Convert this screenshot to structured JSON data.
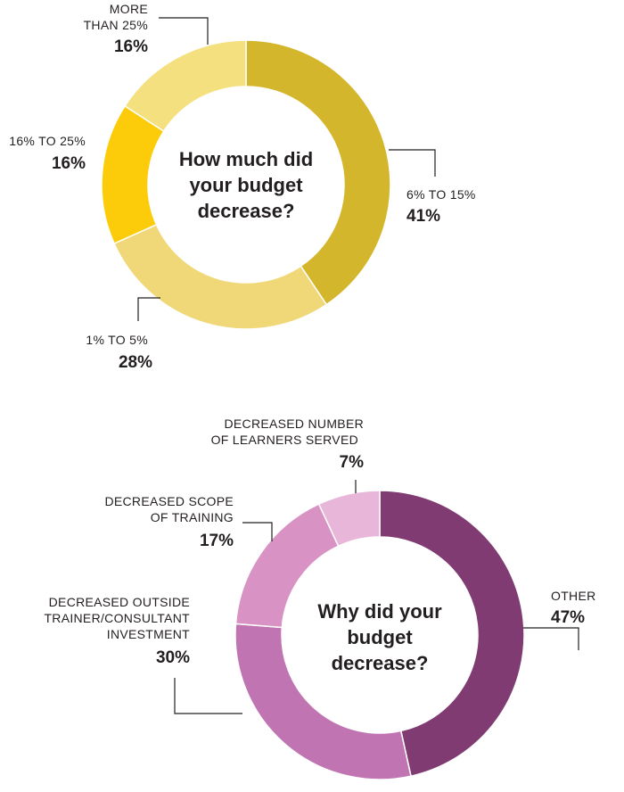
{
  "chart_data": [
    {
      "type": "pie",
      "donut": true,
      "title_lines": [
        "How much did",
        "your budget",
        "decrease?"
      ],
      "slices": [
        {
          "label_lines": [
            "6% TO 15%"
          ],
          "pct_label": "41%",
          "value": 41,
          "color": "#d4b62c"
        },
        {
          "label_lines": [
            "1% TO 5%"
          ],
          "pct_label": "28%",
          "value": 28,
          "color": "#f0d878"
        },
        {
          "label_lines": [
            "16% TO 25%"
          ],
          "pct_label": "16%",
          "value": 16,
          "color": "#fccc0a"
        },
        {
          "label_lines": [
            "MORE",
            "THAN 25%"
          ],
          "pct_label": "16%",
          "value": 16,
          "color": "#f4e07e"
        }
      ]
    },
    {
      "type": "pie",
      "donut": true,
      "title_lines": [
        "Why did your",
        "budget",
        "decrease?"
      ],
      "slices": [
        {
          "label_lines": [
            "OTHER"
          ],
          "pct_label": "47%",
          "value": 47,
          "color": "#7f3b72"
        },
        {
          "label_lines": [
            "DECREASED OUTSIDE",
            "TRAINER/CONSULTANT",
            "INVESTMENT"
          ],
          "pct_label": "30%",
          "value": 30,
          "color": "#c074b2"
        },
        {
          "label_lines": [
            "DECREASED SCOPE",
            "OF TRAINING"
          ],
          "pct_label": "17%",
          "value": 17,
          "color": "#d892c4"
        },
        {
          "label_lines": [
            "DECREASED NUMBER",
            "OF LEARNERS SERVED"
          ],
          "pct_label": "7%",
          "value": 7,
          "color": "#e8b6d8"
        }
      ]
    }
  ]
}
